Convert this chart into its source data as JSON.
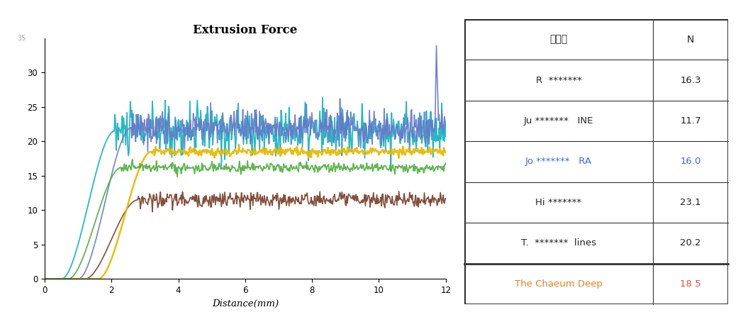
{
  "title": "Extrusion Force",
  "xlabel": "Distance(mm)",
  "xlim": [
    0,
    12
  ],
  "ylim": [
    0,
    35
  ],
  "yticks": [
    0,
    5,
    10,
    15,
    20,
    25,
    30
  ],
  "xticks": [
    0,
    2,
    4,
    6,
    8,
    10,
    12
  ],
  "line_configs": [
    {
      "rise_x": 1.5,
      "plateau": 21.5,
      "noise": 1.8,
      "color": "#1ab0c0",
      "lw": 1.3,
      "seed": 10
    },
    {
      "rise_x": 2.2,
      "plateau": 11.5,
      "noise": 0.55,
      "color": "#7b3f2a",
      "lw": 1.2,
      "seed": 20
    },
    {
      "rise_x": 2.0,
      "plateau": 22.0,
      "noise": 1.2,
      "color": "#6878c8",
      "lw": 1.2,
      "seed": 30,
      "spike": true
    },
    {
      "rise_x": 2.6,
      "plateau": 18.5,
      "noise": 0.3,
      "color": "#e8b800",
      "lw": 1.8,
      "seed": 40
    },
    {
      "rise_x": 1.7,
      "plateau": 16.2,
      "noise": 0.35,
      "color": "#50b040",
      "lw": 1.3,
      "seed": 50
    }
  ],
  "table_rows": [
    {
      "product": "제품명",
      "value": "N",
      "color_product": "#222222",
      "color_value": "#222222",
      "is_header": true
    },
    {
      "product": "R  *******",
      "value": "16.3",
      "color_product": "#222222",
      "color_value": "#222222",
      "is_header": false
    },
    {
      "product": "Ju *******   INE",
      "value": "11.7",
      "color_product": "#222222",
      "color_value": "#222222",
      "is_header": false
    },
    {
      "product": "Jo *******   RA",
      "value": "16.0",
      "color_product": "#4169e1",
      "color_value": "#4169e1",
      "is_header": false
    },
    {
      "product": "Hi *******",
      "value": "23.1",
      "color_product": "#222222",
      "color_value": "#222222",
      "is_header": false
    },
    {
      "product": "T.  *******  lines",
      "value": "20.2",
      "color_product": "#222222",
      "color_value": "#222222",
      "is_header": false
    },
    {
      "product": "The Chaeum Deep",
      "value": "18 5",
      "color_product": "#e67e22",
      "color_value": "#e74c3c",
      "is_header": false
    }
  ]
}
